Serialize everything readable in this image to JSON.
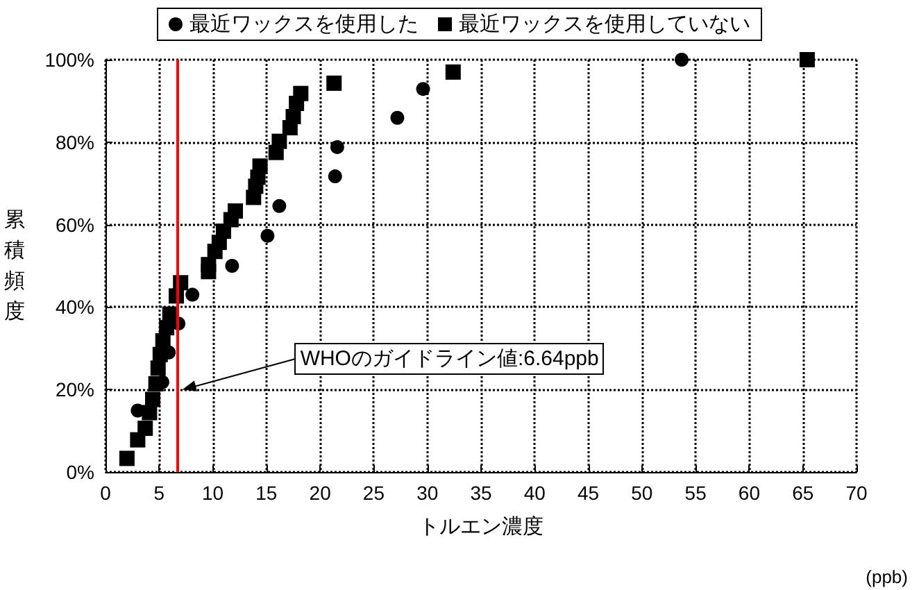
{
  "chart_data": {
    "type": "scatter",
    "xlabel": "トルエン濃度",
    "ylabel": "累積頻度",
    "series": [
      {
        "name": "最近ワックスを使用した",
        "color": "#000000",
        "marker": "circle",
        "x": [
          3.0,
          5.3,
          5.9,
          6.8,
          8.1,
          11.8,
          15.1,
          16.2,
          21.4,
          21.6,
          27.2,
          29.6,
          53.7
        ],
        "values": [
          14.9,
          21.8,
          29,
          36,
          43,
          50,
          57.3,
          64.5,
          71.7,
          78.8,
          85.9,
          92.9,
          100
        ]
      },
      {
        "name": "最近ワックスを使用していない",
        "color": "#000000",
        "marker": "square",
        "x": [
          2.0,
          3.0,
          3.7,
          4.1,
          4.4,
          4.7,
          4.9,
          5.1,
          5.35,
          5.7,
          6.0,
          6.6,
          7.0,
          9.6,
          9.6,
          10.2,
          10.6,
          11.0,
          11.7,
          12.1,
          13.8,
          14.0,
          14.2,
          14.4,
          15.9,
          16.2,
          17.2,
          17.5,
          17.8,
          18.2,
          21.3,
          32.4,
          65.4
        ],
        "values": [
          3.3,
          7.8,
          10.6,
          14.4,
          17.6,
          21.4,
          25.2,
          28.5,
          31.8,
          35,
          38.3,
          42.7,
          45.9,
          48.6,
          50.3,
          53.5,
          55.7,
          58.4,
          61.2,
          63.3,
          66.6,
          69.3,
          71.5,
          74.2,
          77.5,
          80.2,
          83.5,
          86.2,
          89.4,
          91.8,
          94.3,
          97,
          100
        ]
      }
    ],
    "xlim": [
      0,
      70
    ],
    "xticks": [
      0,
      5,
      10,
      15,
      20,
      25,
      30,
      35,
      40,
      45,
      50,
      55,
      60,
      65,
      70
    ],
    "ylim": [
      0,
      100
    ],
    "yticks": [
      {
        "value": 0,
        "label": "0%"
      },
      {
        "value": 20,
        "label": "20%"
      },
      {
        "value": 40,
        "label": "40%"
      },
      {
        "value": 60,
        "label": "60%"
      },
      {
        "value": 80,
        "label": "80%"
      },
      {
        "value": 100,
        "label": "100%"
      }
    ],
    "ref_lines": [
      {
        "axis": "x",
        "value": 6.64,
        "color": "#ff0000"
      }
    ],
    "annotations": [
      "WHOのガイドライン値:6.64ppb",
      "(ppb)"
    ],
    "grid": true,
    "legend": "top",
    "line_style": "dotted"
  }
}
